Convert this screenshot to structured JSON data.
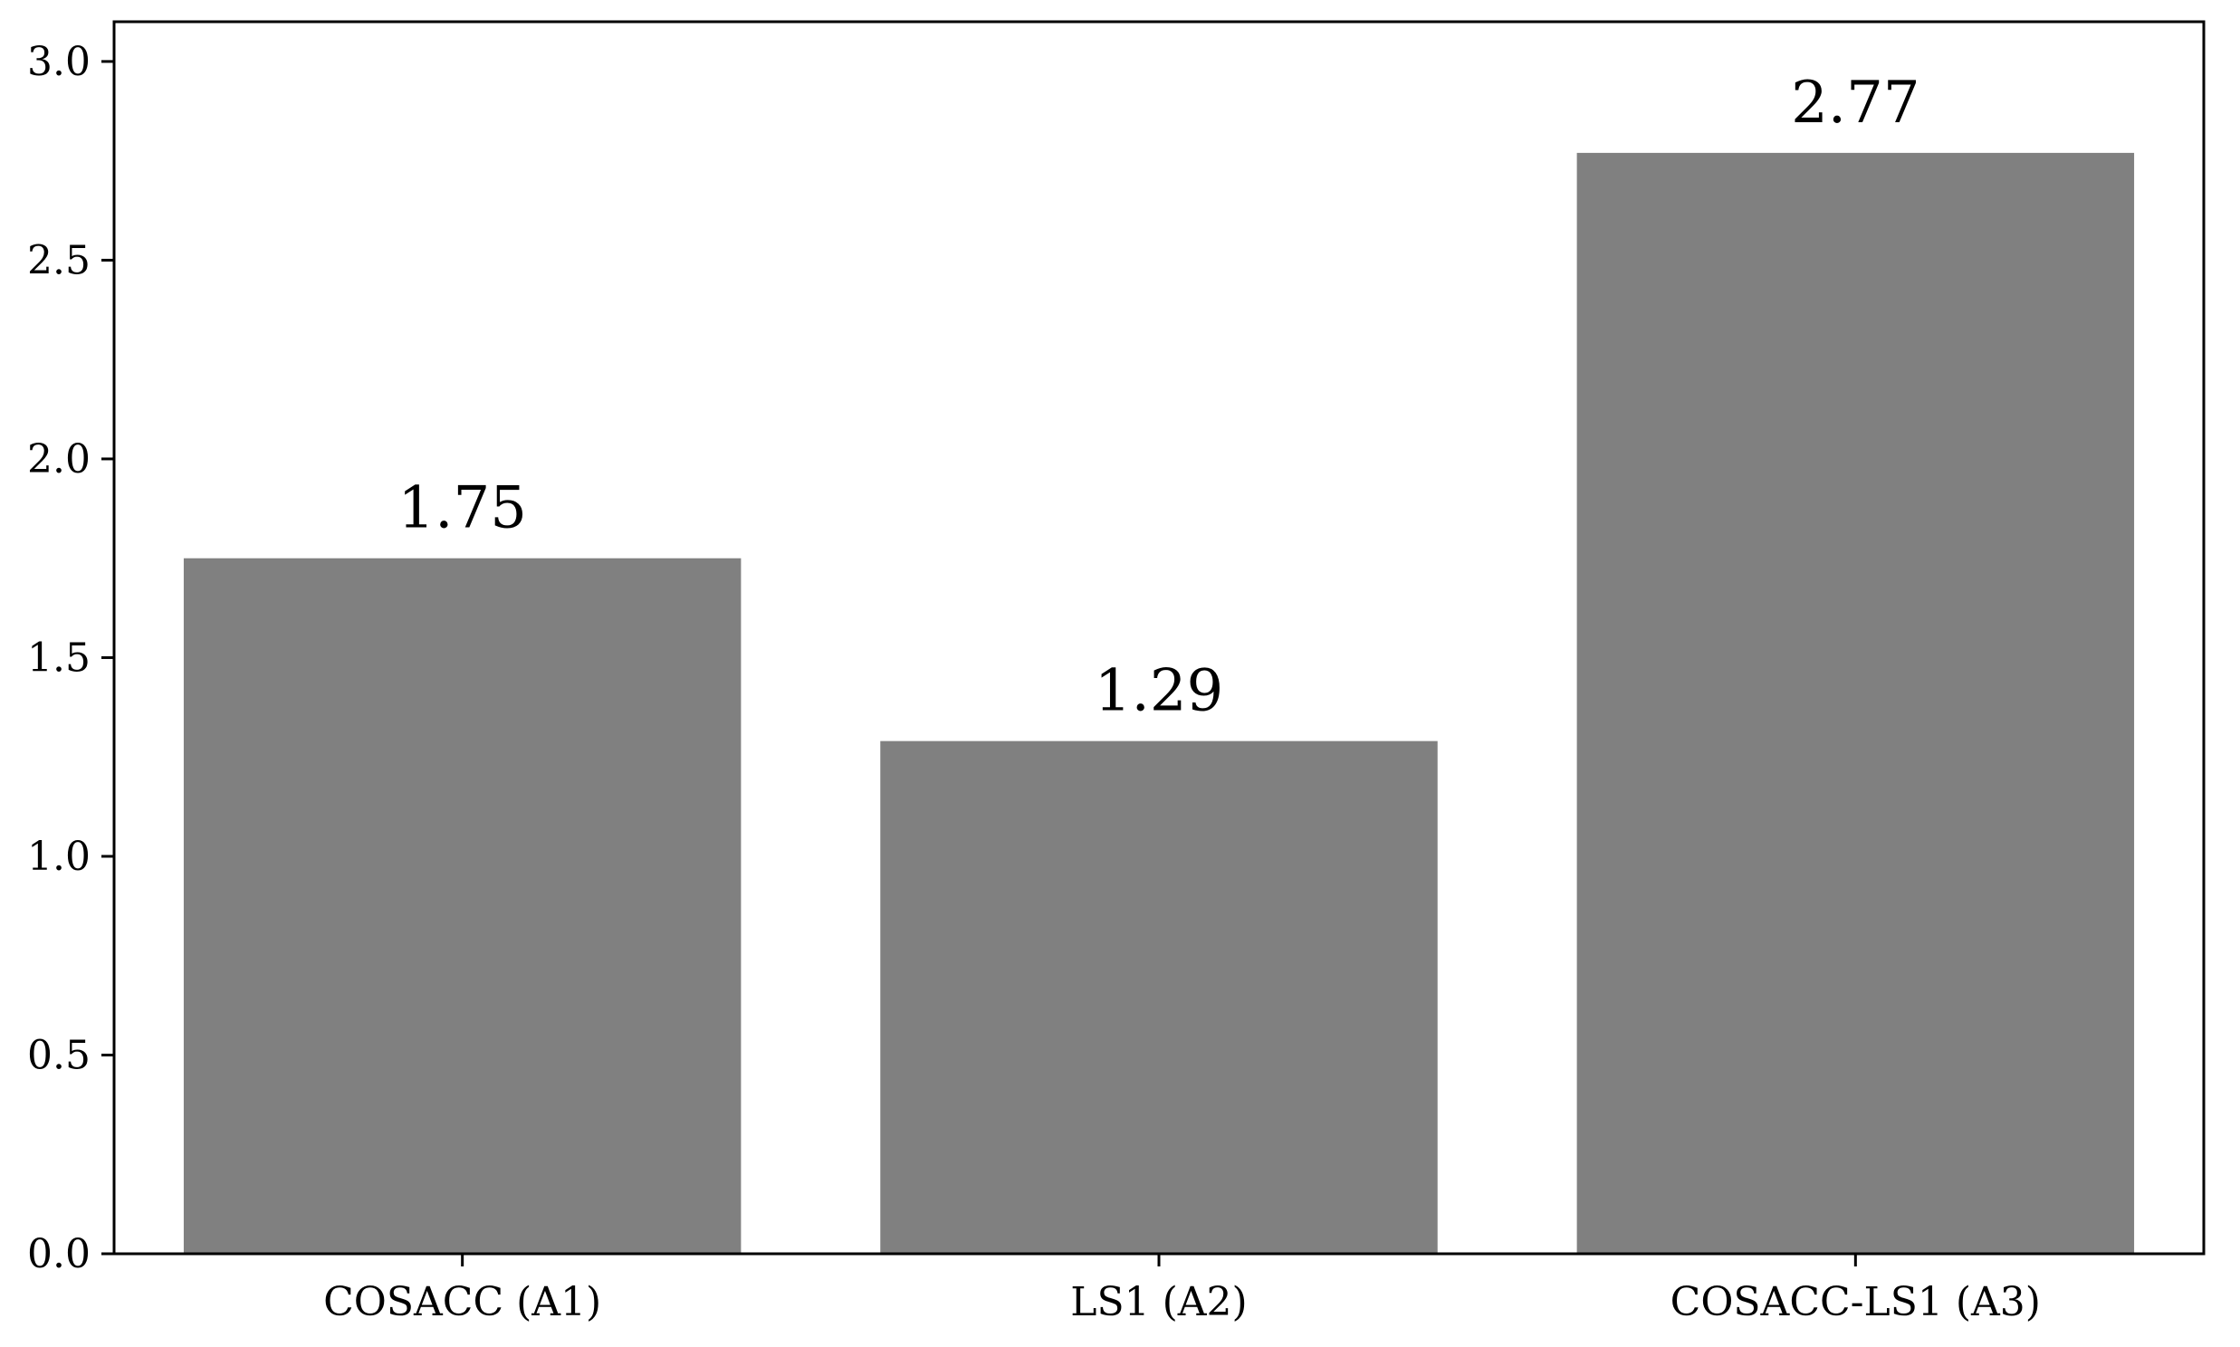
{
  "chart_data": {
    "type": "bar",
    "title": "",
    "xlabel": "",
    "ylabel": "",
    "categories": [
      "COSACC (A1)",
      "LS1 (A2)",
      "COSACC-LS1 (A3)"
    ],
    "values": [
      1.75,
      1.29,
      2.77
    ],
    "data_labels": [
      "1.75",
      "1.29",
      "2.77"
    ],
    "ylim": [
      0,
      3.1
    ],
    "yticks": [
      0.0,
      0.5,
      1.0,
      1.5,
      2.0,
      2.5,
      3.0
    ],
    "ytick_labels": [
      "0.0",
      "0.5",
      "1.0",
      "1.5",
      "2.0",
      "2.5",
      "3.0"
    ],
    "grid": false,
    "legend": "none",
    "colors": {
      "bar": "#808080",
      "axis": "#000000",
      "background": "#ffffff"
    }
  }
}
